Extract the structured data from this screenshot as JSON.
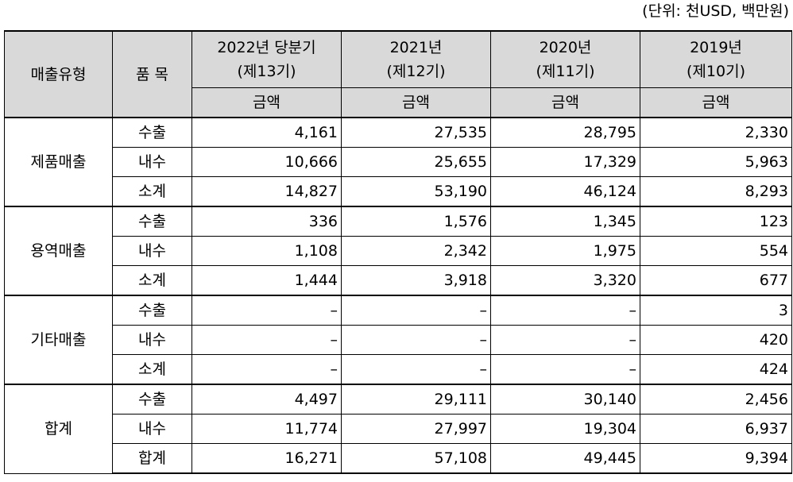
{
  "unit_label": "(단위: 천USD, 백만원)",
  "header": {
    "type_col": "매출유형",
    "item_col": "품 목",
    "periods": [
      {
        "year": "2022년 당분기",
        "term": "(제13기)"
      },
      {
        "year": "2021년",
        "term": "(제12기)"
      },
      {
        "year": "2020년",
        "term": "(제11기)"
      },
      {
        "year": "2019년",
        "term": "(제10기)"
      }
    ],
    "amount_label": "금액"
  },
  "groups": [
    {
      "name": "제품매출",
      "rows": [
        {
          "item": "수출",
          "values": [
            "4,161",
            "27,535",
            "28,795",
            "2,330"
          ]
        },
        {
          "item": "내수",
          "values": [
            "10,666",
            "25,655",
            "17,329",
            "5,963"
          ]
        },
        {
          "item": "소계",
          "values": [
            "14,827",
            "53,190",
            "46,124",
            "8,293"
          ]
        }
      ]
    },
    {
      "name": "용역매출",
      "rows": [
        {
          "item": "수출",
          "values": [
            "336",
            "1,576",
            "1,345",
            "123"
          ]
        },
        {
          "item": "내수",
          "values": [
            "1,108",
            "2,342",
            "1,975",
            "554"
          ]
        },
        {
          "item": "소계",
          "values": [
            "1,444",
            "3,918",
            "3,320",
            "677"
          ]
        }
      ]
    },
    {
      "name": "기타매출",
      "rows": [
        {
          "item": "수출",
          "values": [
            "–",
            "–",
            "–",
            "3"
          ]
        },
        {
          "item": "내수",
          "values": [
            "–",
            "–",
            "–",
            "420"
          ]
        },
        {
          "item": "소계",
          "values": [
            "–",
            "–",
            "–",
            "424"
          ]
        }
      ]
    },
    {
      "name": "합계",
      "rows": [
        {
          "item": "수출",
          "values": [
            "4,497",
            "29,111",
            "30,140",
            "2,456"
          ]
        },
        {
          "item": "내수",
          "values": [
            "11,774",
            "27,997",
            "19,304",
            "6,937"
          ]
        },
        {
          "item": "합계",
          "values": [
            "16,271",
            "57,108",
            "49,445",
            "9,394"
          ]
        }
      ]
    }
  ]
}
